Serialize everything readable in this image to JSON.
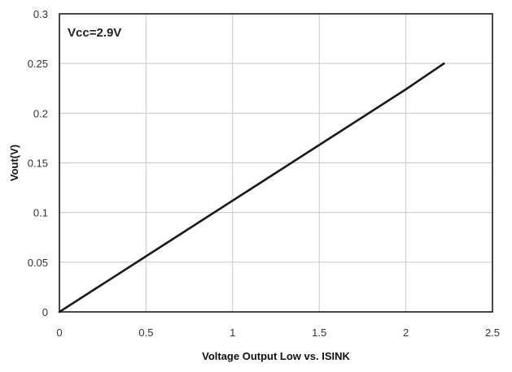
{
  "chart_data": {
    "type": "line",
    "title": "",
    "xlabel": "Voltage Output Low vs. ISINK",
    "ylabel": "Vout(V)",
    "annotation": "Vcc=2.9V",
    "xlim": [
      0,
      2.5
    ],
    "ylim": [
      0,
      0.3
    ],
    "x_ticks": [
      "0",
      "0.5",
      "1",
      "1.5",
      "2",
      "2.5"
    ],
    "y_ticks": [
      "0",
      "0.05",
      "0.1",
      "0.15",
      "0.2",
      "0.25",
      "0.3"
    ],
    "grid": true,
    "legend": "none",
    "series": [
      {
        "color": "#1a1a1a",
        "x": [
          0,
          0.5,
          1.0,
          1.5,
          2.0,
          2.22
        ],
        "y": [
          0,
          0.056,
          0.112,
          0.168,
          0.224,
          0.25
        ]
      }
    ]
  }
}
